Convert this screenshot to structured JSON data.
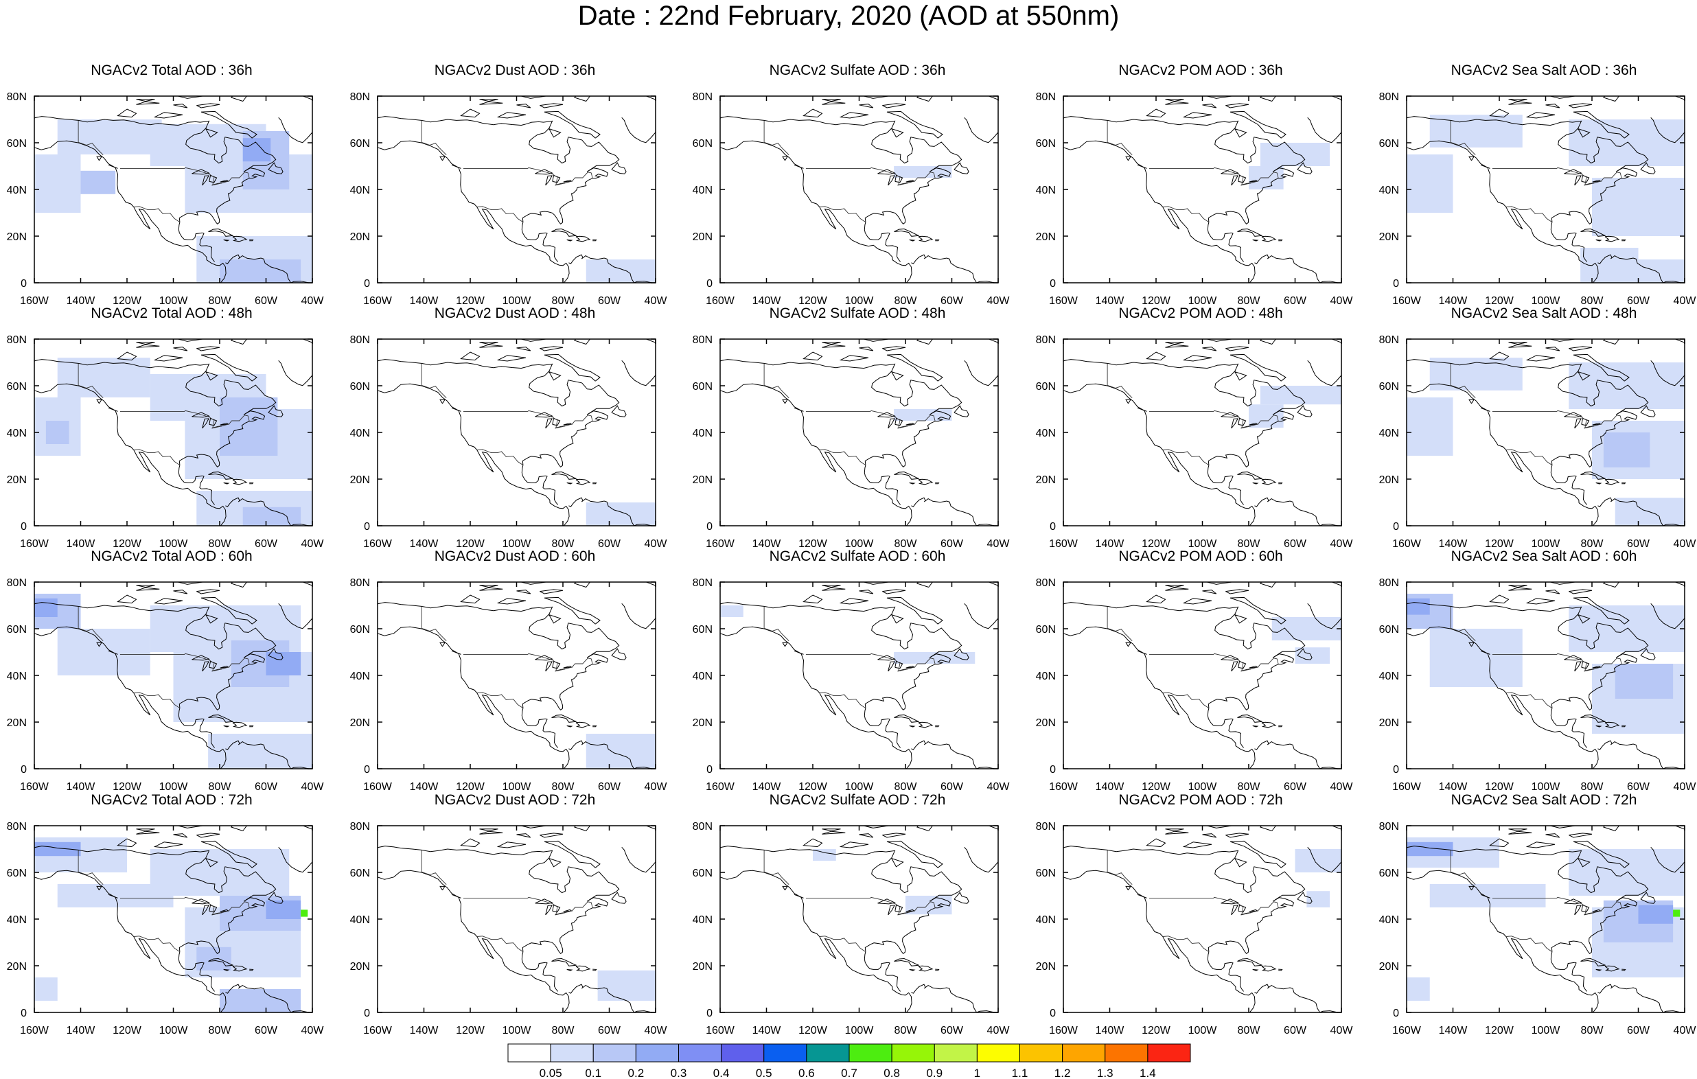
{
  "title": "Date : 22nd February, 2020 (AOD at 550nm)",
  "lon_labels": [
    "160W",
    "140W",
    "120W",
    "100W",
    "80W",
    "60W",
    "40W"
  ],
  "lat_labels": [
    "0",
    "20N",
    "40N",
    "60N",
    "80N"
  ],
  "panels": [
    [
      {
        "title": "NGACv2 Total AOD : 36h",
        "species": "total",
        "hour": 36
      },
      {
        "title": "NGACv2 Dust AOD : 36h",
        "species": "dust",
        "hour": 36
      },
      {
        "title": "NGACv2 Sulfate AOD : 36h",
        "species": "sulfate",
        "hour": 36
      },
      {
        "title": "NGACv2 POM AOD : 36h",
        "species": "pom",
        "hour": 36
      },
      {
        "title": "NGACv2 Sea Salt AOD : 36h",
        "species": "seasalt",
        "hour": 36
      }
    ],
    [
      {
        "title": "NGACv2 Total AOD : 48h",
        "species": "total",
        "hour": 48
      },
      {
        "title": "NGACv2 Dust AOD : 48h",
        "species": "dust",
        "hour": 48
      },
      {
        "title": "NGACv2 Sulfate AOD : 48h",
        "species": "sulfate",
        "hour": 48
      },
      {
        "title": "NGACv2 POM AOD : 48h",
        "species": "pom",
        "hour": 48
      },
      {
        "title": "NGACv2 Sea Salt AOD : 48h",
        "species": "seasalt",
        "hour": 48
      }
    ],
    [
      {
        "title": "NGACv2 Total AOD : 60h",
        "species": "total",
        "hour": 60
      },
      {
        "title": "NGACv2 Dust AOD : 60h",
        "species": "dust",
        "hour": 60
      },
      {
        "title": "NGACv2 Sulfate AOD : 60h",
        "species": "sulfate",
        "hour": 60
      },
      {
        "title": "NGACv2 POM AOD : 60h",
        "species": "pom",
        "hour": 60
      },
      {
        "title": "NGACv2 Sea Salt AOD : 60h",
        "species": "seasalt",
        "hour": 60
      }
    ],
    [
      {
        "title": "NGACv2 Total AOD : 72h",
        "species": "total",
        "hour": 72
      },
      {
        "title": "NGACv2 Dust AOD : 72h",
        "species": "dust",
        "hour": 72
      },
      {
        "title": "NGACv2 Sulfate AOD : 72h",
        "species": "sulfate",
        "hour": 72
      },
      {
        "title": "NGACv2 POM AOD : 72h",
        "species": "pom",
        "hour": 72
      },
      {
        "title": "NGACv2 Sea Salt  AOD : 72h",
        "species": "seasalt",
        "hour": 72
      }
    ]
  ],
  "colorbar": {
    "colors": [
      "#ffffff",
      "#d3def9",
      "#b8c8f6",
      "#92abf4",
      "#7f8ff4",
      "#5f60ec",
      "#0a5ff0",
      "#069693",
      "#4ded10",
      "#96f508",
      "#c2f447",
      "#fdfd00",
      "#fcc300",
      "#fea500",
      "#fc7400",
      "#fb2513"
    ],
    "labels": [
      "0.05",
      "0.1",
      "0.2",
      "0.3",
      "0.4",
      "0.5",
      "0.6",
      "0.7",
      "0.8",
      "0.9",
      "1",
      "1.1",
      "1.2",
      "1.3",
      "1.4"
    ]
  }
}
